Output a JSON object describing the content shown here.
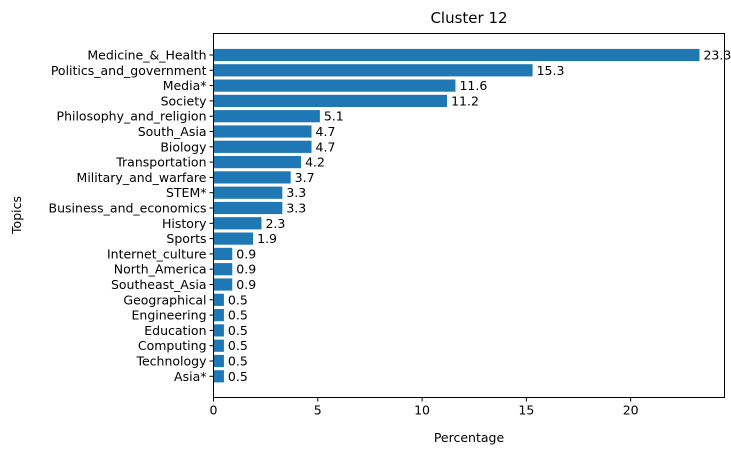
{
  "chart_data": {
    "type": "bar",
    "orientation": "horizontal",
    "title": "Cluster 12",
    "xlabel": "Percentage",
    "ylabel": "Topics",
    "xlim": [
      0,
      24.5
    ],
    "xticks": [
      0,
      5,
      10,
      15,
      20
    ],
    "grid": false,
    "bar_color": "#1f77b4",
    "categories": [
      "Medicine_&_Health",
      "Politics_and_government",
      "Media*",
      "Society",
      "Philosophy_and_religion",
      "South_Asia",
      "Biology",
      "Transportation",
      "Military_and_warfare",
      "STEM*",
      "Business_and_economics",
      "History",
      "Sports",
      "Internet_culture",
      "North_America",
      "Southeast_Asia",
      "Geographical",
      "Engineering",
      "Education",
      "Computing",
      "Technology",
      "Asia*"
    ],
    "values": [
      23.3,
      15.3,
      11.6,
      11.2,
      5.1,
      4.7,
      4.7,
      4.2,
      3.7,
      3.3,
      3.3,
      2.3,
      1.9,
      0.9,
      0.9,
      0.9,
      0.5,
      0.5,
      0.5,
      0.5,
      0.5,
      0.5
    ],
    "value_labels": [
      "23.3",
      "15.3",
      "11.6",
      "11.2",
      "5.1",
      "4.7",
      "4.7",
      "4.2",
      "3.7",
      "3.3",
      "3.3",
      "2.3",
      "1.9",
      "0.9",
      "0.9",
      "0.9",
      "0.5",
      "0.5",
      "0.5",
      "0.5",
      "0.5",
      "0.5"
    ]
  }
}
